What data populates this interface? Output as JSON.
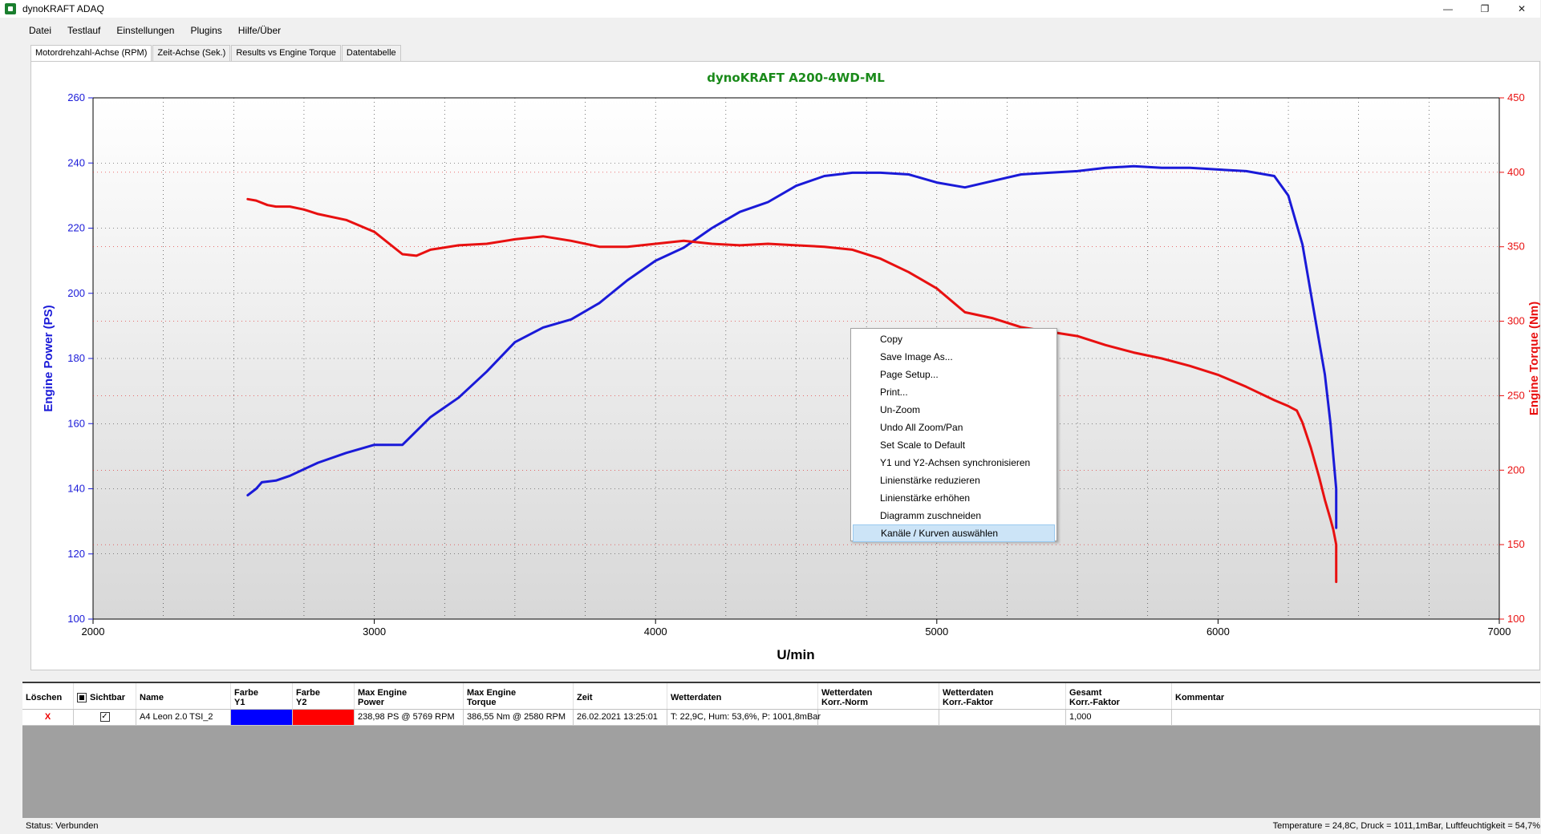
{
  "window": {
    "title": "dynoKRAFT ADAQ",
    "buttons": [
      "—",
      "❐",
      "✕"
    ]
  },
  "menu": [
    "Datei",
    "Testlauf",
    "Einstellungen",
    "Plugins",
    "Hilfe/Über"
  ],
  "tabs": [
    "Motordrehzahl-Achse (RPM)",
    "Zeit-Achse (Sek.)",
    "Results vs Engine Torque",
    "Datentabelle"
  ],
  "colors": {
    "power": "#1a1ad8",
    "torque": "#e81010",
    "title": "#1a8a1a"
  },
  "chart_data": {
    "type": "line",
    "title": "dynoKRAFT A200-4WD-ML",
    "xlabel": "U/min",
    "ylabel": "Engine Power (PS)",
    "y2label": "Engine Torque (Nm)",
    "xlim": [
      2000,
      7000
    ],
    "ylim": [
      100,
      260
    ],
    "y2lim": [
      100,
      450
    ],
    "xticks": [
      "2000",
      "3000",
      "4000",
      "5000",
      "6000",
      "7000"
    ],
    "yticks": [
      "100",
      "120",
      "140",
      "160",
      "180",
      "200",
      "220",
      "240",
      "260"
    ],
    "y2ticks": [
      "100",
      "150",
      "200",
      "250",
      "300",
      "350",
      "400",
      "450"
    ],
    "grid": true,
    "series": [
      {
        "axis": "y",
        "x": [
          2550,
          2580,
          2600,
          2650,
          2700,
          2750,
          2800,
          2900,
          3000,
          3100,
          3200,
          3300,
          3400,
          3500,
          3600,
          3700,
          3800,
          3900,
          4000,
          4100,
          4200,
          4300,
          4400,
          4500,
          4600,
          4700,
          4800,
          4900,
          5000,
          5100,
          5200,
          5300,
          5400,
          5500,
          5600,
          5700,
          5800,
          5900,
          6000,
          6100,
          6200,
          6250,
          6300,
          6330,
          6360,
          6380,
          6400,
          6410,
          6420,
          6420,
          6420
        ],
        "y": [
          138,
          140,
          142,
          142.5,
          144,
          146,
          148,
          151,
          153.5,
          153.5,
          162,
          168,
          176,
          185,
          189.5,
          192,
          197,
          204,
          210,
          214,
          220,
          225,
          228,
          233,
          236,
          237,
          237,
          236.5,
          234,
          232.5,
          234.5,
          236.5,
          237,
          237.5,
          238.5,
          239,
          238.5,
          238.5,
          238,
          237.5,
          236,
          230,
          215,
          200,
          185,
          175,
          160,
          150,
          140,
          132,
          128
        ]
      },
      {
        "axis": "y2",
        "x": [
          2550,
          2580,
          2620,
          2650,
          2700,
          2750,
          2800,
          2900,
          3000,
          3100,
          3150,
          3200,
          3300,
          3400,
          3500,
          3600,
          3700,
          3800,
          3900,
          4000,
          4100,
          4200,
          4300,
          4400,
          4500,
          4600,
          4700,
          4800,
          4900,
          5000,
          5100,
          5200,
          5300,
          5400,
          5500,
          5600,
          5700,
          5800,
          5900,
          6000,
          6100,
          6200,
          6250,
          6280,
          6300,
          6330,
          6360,
          6380,
          6400,
          6410,
          6420,
          6420,
          6420
        ],
        "y": [
          382,
          381,
          378,
          377,
          377,
          375,
          372,
          368,
          360,
          345,
          344,
          348,
          351,
          352,
          355,
          357,
          354,
          350,
          350,
          352,
          354,
          352,
          351,
          352,
          351,
          350,
          348,
          342,
          333,
          322,
          306,
          302,
          296,
          293,
          290,
          284,
          279,
          275,
          270,
          264,
          256,
          247,
          243,
          240,
          232,
          215,
          195,
          180,
          167,
          160,
          150,
          140,
          125
        ]
      }
    ]
  },
  "context_menu": [
    "Copy",
    "Save Image As...",
    "Page Setup...",
    "Print...",
    "Un-Zoom",
    "Undo All Zoom/Pan",
    "Set Scale to Default",
    "Y1 und Y2-Achsen synchronisieren",
    "Linienstärke reduzieren",
    "Linienstärke erhöhen",
    "Diagramm zuschneiden",
    "Kanäle / Kurven auswählen"
  ],
  "grid": {
    "headers": {
      "delete": "Löschen",
      "visible": "Sichtbar",
      "name": "Name",
      "color_y1": "Farbe\nY1",
      "color_y2": "Farbe\nY2",
      "max_power": "Max Engine\nPower",
      "max_torque": "Max Engine\nTorque",
      "time": "Zeit",
      "weather": "Wetterdaten",
      "weather_norm": "Wetterdaten\nKorr.-Norm",
      "weather_factor": "Wetterdaten\nKorr.-Faktor",
      "total_factor": "Gesamt\nKorr.-Faktor",
      "comment": "Kommentar"
    },
    "row": {
      "delete": "X",
      "name": "A4 Leon 2.0 TSI_2",
      "max_power": "238,98 PS @ 5769 RPM",
      "max_torque": "386,55 Nm @ 2580 RPM",
      "time": "26.02.2021 13:25:01",
      "weather": "T: 22,9C, Hum: 53,6%, P: 1001,8mBar",
      "weather_norm": "",
      "weather_factor": "",
      "total_factor": "1,000",
      "comment": ""
    }
  },
  "status": {
    "left": "Status: Verbunden",
    "right": "Temperature = 24,8C, Druck = 1011,1mBar, Luftfeuchtigkeit = 54,7%"
  }
}
